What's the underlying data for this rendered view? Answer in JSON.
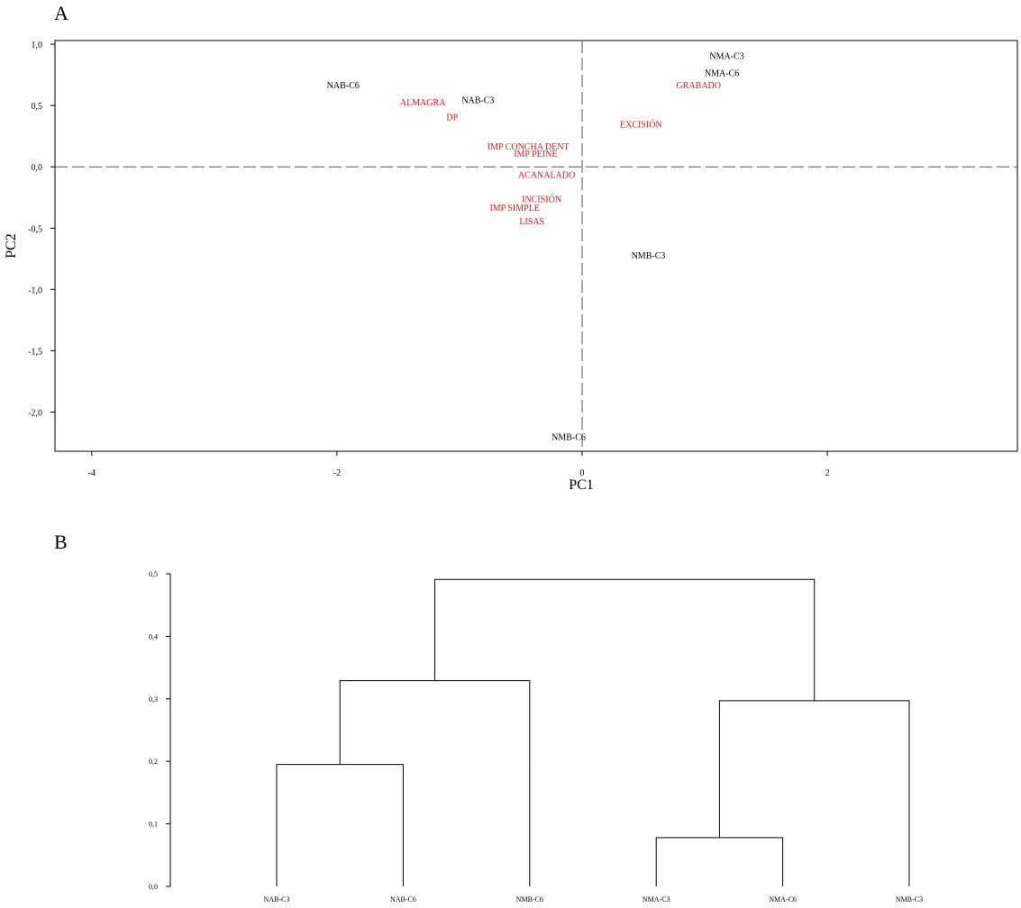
{
  "panel_a_letter": "A",
  "panel_b_letter": "B",
  "chart_data": [
    {
      "type": "scatter",
      "panel": "A",
      "title": "",
      "xlabel": "PC1",
      "ylabel": "PC2",
      "xlim": [
        -4.3,
        3.55
      ],
      "ylim": [
        -2.32,
        1.03
      ],
      "xticks": [
        -4,
        -2,
        0,
        2
      ],
      "xtick_labels": [
        "-4",
        "-2",
        "0",
        "2"
      ],
      "yticks": [
        -2.0,
        -1.5,
        -1.0,
        -0.5,
        0.0,
        0.5,
        1.0
      ],
      "ytick_labels": [
        "-2,0",
        "-1,5",
        "-1,0",
        "-0,5",
        "0,0",
        "0,5",
        "1,0"
      ],
      "reference_lines": {
        "x": 0,
        "y": 0,
        "style": "dashed"
      },
      "colors": {
        "samples": "#000000",
        "variables": "#e8151b"
      },
      "samples": [
        {
          "label": "NAB-C6",
          "x": -1.95,
          "y": 0.67
        },
        {
          "label": "NAB-C3",
          "x": -0.85,
          "y": 0.55
        },
        {
          "label": "NMA-C3",
          "x": 1.18,
          "y": 0.91
        },
        {
          "label": "NMA-C6",
          "x": 1.14,
          "y": 0.77
        },
        {
          "label": "NMB-C3",
          "x": 0.54,
          "y": -0.72
        },
        {
          "label": "NMB-C6",
          "x": -0.11,
          "y": -2.2
        }
      ],
      "variables": [
        {
          "label": "ALMAGRA",
          "x": -1.3,
          "y": 0.53
        },
        {
          "label": "DP",
          "x": -1.06,
          "y": 0.41
        },
        {
          "label": "GRABADO",
          "x": 0.95,
          "y": 0.67
        },
        {
          "label": "EXCISIÓN",
          "x": 0.48,
          "y": 0.35
        },
        {
          "label": "IMP CONCHA DENT",
          "x": -0.44,
          "y": 0.17
        },
        {
          "label": "IMP PEINE",
          "x": -0.38,
          "y": 0.11
        },
        {
          "label": "ACANALADO",
          "x": -0.29,
          "y": -0.06
        },
        {
          "label": "INCISIÓN",
          "x": -0.33,
          "y": -0.26
        },
        {
          "label": "IMP SIMPLE",
          "x": -0.55,
          "y": -0.33
        },
        {
          "label": "LISAS",
          "x": -0.41,
          "y": -0.44
        }
      ]
    },
    {
      "type": "dendrogram",
      "panel": "B",
      "title": "",
      "ylim": [
        0,
        0.5
      ],
      "yticks": [
        0.0,
        0.1,
        0.2,
        0.3,
        0.4,
        0.5
      ],
      "ytick_labels": [
        "0,0",
        "0,1",
        "0,2",
        "0,3",
        "0,4",
        "0,5"
      ],
      "leaves": [
        "NAB-C3",
        "NAB-C6",
        "NMB-C6",
        "NMA-C3",
        "NMA-C6",
        "NMB-C3"
      ],
      "merges": [
        {
          "left": "L0",
          "right": "L1",
          "height": 0.195
        },
        {
          "left": "L3",
          "right": "L4",
          "height": 0.078
        },
        {
          "left": "M1",
          "right": "L5",
          "height": 0.297
        },
        {
          "left": "M0",
          "right": "L2",
          "height": 0.329
        },
        {
          "left": "M3",
          "right": "M2",
          "height": 0.491
        }
      ]
    }
  ]
}
